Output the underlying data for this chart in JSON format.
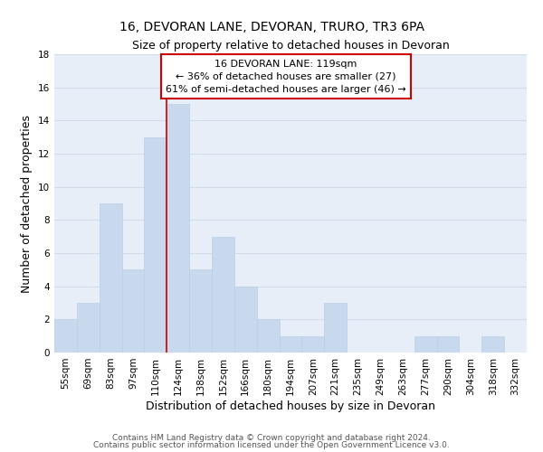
{
  "title": "16, DEVORAN LANE, DEVORAN, TRURO, TR3 6PA",
  "subtitle": "Size of property relative to detached houses in Devoran",
  "xlabel": "Distribution of detached houses by size in Devoran",
  "ylabel": "Number of detached properties",
  "bin_labels": [
    "55sqm",
    "69sqm",
    "83sqm",
    "97sqm",
    "110sqm",
    "124sqm",
    "138sqm",
    "152sqm",
    "166sqm",
    "180sqm",
    "194sqm",
    "207sqm",
    "221sqm",
    "235sqm",
    "249sqm",
    "263sqm",
    "277sqm",
    "290sqm",
    "304sqm",
    "318sqm",
    "332sqm"
  ],
  "bar_heights": [
    2,
    3,
    9,
    5,
    13,
    15,
    5,
    7,
    4,
    2,
    1,
    1,
    3,
    0,
    0,
    0,
    1,
    1,
    0,
    1,
    0
  ],
  "bar_color": "#c9d9ed",
  "bar_edge_color": "#b8cfe8",
  "grid_color": "#d0dcea",
  "vline_color": "#cc0000",
  "vline_x_index": 4.5,
  "annotation_line1": "16 DEVORAN LANE: 119sqm",
  "annotation_line2": "← 36% of detached houses are smaller (27)",
  "annotation_line3": "61% of semi-detached houses are larger (46) →",
  "ylim": [
    0,
    18
  ],
  "yticks": [
    0,
    2,
    4,
    6,
    8,
    10,
    12,
    14,
    16,
    18
  ],
  "title_fontsize": 10,
  "subtitle_fontsize": 9,
  "axis_label_fontsize": 9,
  "tick_fontsize": 7.5,
  "annotation_fontsize": 8,
  "footer_fontsize": 6.5,
  "footer_line1": "Contains HM Land Registry data © Crown copyright and database right 2024.",
  "footer_line2": "Contains public sector information licensed under the Open Government Licence v3.0."
}
